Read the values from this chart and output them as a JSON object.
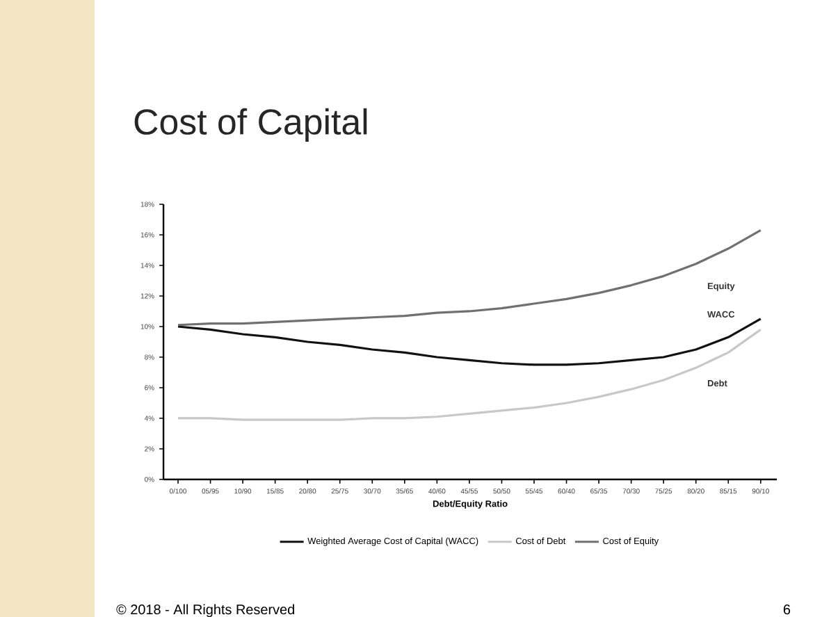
{
  "chart_data": {
    "type": "line",
    "title": "Cost of Capital",
    "xlabel": "Debt/Equity Ratio",
    "categories": [
      "0/100",
      "05/95",
      "10/90",
      "15/85",
      "20/80",
      "25/75",
      "30/70",
      "35/65",
      "40/60",
      "45/55",
      "50/50",
      "55/45",
      "60/40",
      "65/35",
      "70/30",
      "75/25",
      "80/20",
      "85/15",
      "90/10"
    ],
    "series": [
      {
        "name": "Weighted Average Cost of Capital (WACC)",
        "color": "#111111",
        "values": [
          10.0,
          9.8,
          9.5,
          9.3,
          9.0,
          8.8,
          8.5,
          8.3,
          8.0,
          7.8,
          7.6,
          7.5,
          7.5,
          7.6,
          7.8,
          8.0,
          8.5,
          9.3,
          10.5
        ]
      },
      {
        "name": "Cost of Debt",
        "color": "#c8c8c8",
        "values": [
          4.0,
          4.0,
          3.9,
          3.9,
          3.9,
          3.9,
          4.0,
          4.0,
          4.1,
          4.3,
          4.5,
          4.7,
          5.0,
          5.4,
          5.9,
          6.5,
          7.3,
          8.3,
          9.8
        ]
      },
      {
        "name": "Cost of Equity",
        "color": "#707070",
        "values": [
          10.1,
          10.2,
          10.2,
          10.3,
          10.4,
          10.5,
          10.6,
          10.7,
          10.9,
          11.0,
          11.2,
          11.5,
          11.8,
          12.2,
          12.7,
          13.3,
          14.1,
          15.1,
          16.3
        ]
      }
    ],
    "ylim": [
      0,
      18
    ],
    "yticks": [
      {
        "value": 0,
        "label": "0%"
      },
      {
        "value": 2,
        "label": "2%"
      },
      {
        "value": 4,
        "label": "4%"
      },
      {
        "value": 6,
        "label": "6%"
      },
      {
        "value": 8,
        "label": "8%"
      },
      {
        "value": 10,
        "label": "10%"
      },
      {
        "value": 12,
        "label": "12%"
      },
      {
        "value": 14,
        "label": "14%"
      },
      {
        "value": 16,
        "label": "16%"
      },
      {
        "value": 18,
        "label": "18%"
      }
    ],
    "legend": "bottom",
    "grid": false,
    "marker": "none",
    "line_style": "solid",
    "annotations": [
      "Equity",
      "WACC",
      "Debt",
      "© 2018 - All Rights Reserved",
      "6"
    ]
  }
}
